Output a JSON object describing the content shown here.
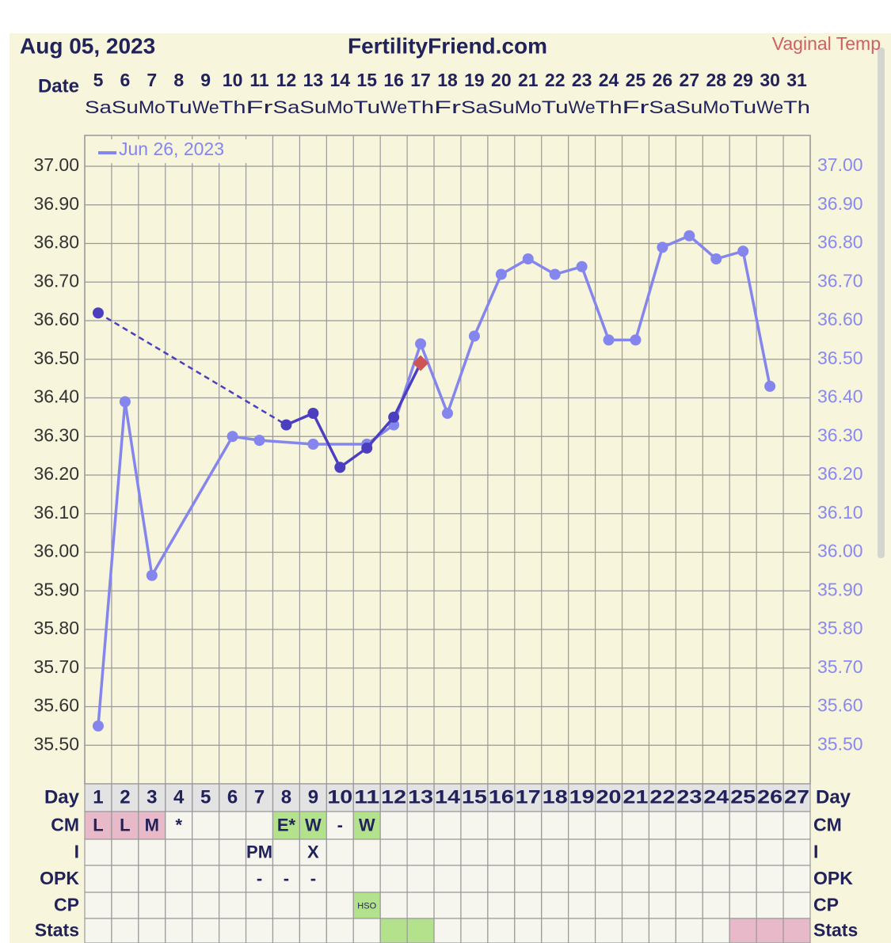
{
  "chart_data": {
    "type": "line",
    "date": "Aug 05, 2023",
    "title": "FertilityFriend.com",
    "temp_label": "Vaginal Temp",
    "date_label": "Date",
    "day_label": "Day",
    "dates": [
      5,
      6,
      7,
      8,
      9,
      10,
      11,
      12,
      13,
      14,
      15,
      16,
      17,
      18,
      19,
      20,
      21,
      22,
      23,
      24,
      25,
      26,
      27,
      28,
      29,
      30,
      31
    ],
    "weekdays": [
      "Sa",
      "Su",
      "Mo",
      "Tu",
      "We",
      "Th",
      "Fr",
      "Sa",
      "Su",
      "Mo",
      "Tu",
      "We",
      "Th",
      "Fr",
      "Sa",
      "Su",
      "Mo",
      "Tu",
      "We",
      "Th",
      "Fr",
      "Sa",
      "Su",
      "Mo",
      "Tu",
      "We",
      "Th"
    ],
    "categories": [
      1,
      2,
      3,
      4,
      5,
      6,
      7,
      8,
      9,
      10,
      11,
      12,
      13,
      14,
      15,
      16,
      17,
      18,
      19,
      20,
      21,
      22,
      23,
      24,
      25,
      26,
      27
    ],
    "ylim": [
      35.4,
      37.08
    ],
    "yticks": [
      {
        "value": 35.5,
        "label": "35.50"
      },
      {
        "value": 35.6,
        "label": "35.60"
      },
      {
        "value": 35.7,
        "label": "35.70"
      },
      {
        "value": 35.8,
        "label": "35.80"
      },
      {
        "value": 35.9,
        "label": "35.90"
      },
      {
        "value": 36.0,
        "label": "36.00"
      },
      {
        "value": 36.1,
        "label": "36.10"
      },
      {
        "value": 36.2,
        "label": "36.20"
      },
      {
        "value": 36.3,
        "label": "36.30"
      },
      {
        "value": 36.4,
        "label": "36.40"
      },
      {
        "value": 36.5,
        "label": "36.50"
      },
      {
        "value": 36.6,
        "label": "36.60"
      },
      {
        "value": 36.7,
        "label": "36.70"
      },
      {
        "value": 36.8,
        "label": "36.80"
      },
      {
        "value": 36.9,
        "label": "36.90"
      },
      {
        "value": 37.0,
        "label": "37.00"
      }
    ],
    "grid": true,
    "series": [
      {
        "name": "Jun 26, 2023",
        "color": "#8585ee",
        "connect_gaps": true,
        "values": [
          35.55,
          36.39,
          35.94,
          null,
          null,
          36.3,
          36.29,
          null,
          36.28,
          null,
          36.28,
          36.33,
          36.54,
          36.36,
          36.56,
          36.72,
          36.76,
          36.72,
          36.74,
          36.55,
          36.55,
          36.79,
          36.82,
          36.76,
          36.78,
          36.43,
          null
        ]
      },
      {
        "color": "#4b3fc0",
        "gap_style": "dashed",
        "last_marker": "diamond",
        "last_marker_color": "#cc5555",
        "values": [
          36.62,
          null,
          null,
          null,
          null,
          null,
          null,
          36.33,
          36.36,
          36.22,
          36.27,
          36.35,
          36.49,
          null,
          null,
          null,
          null,
          null,
          null,
          null,
          null,
          null,
          null,
          null,
          null,
          null,
          null
        ]
      }
    ],
    "table": [
      {
        "label": "CM",
        "cells": [
          "L",
          "L",
          "M",
          "*",
          null,
          null,
          null,
          "E*",
          "W",
          "-",
          "W",
          null,
          null,
          null,
          null,
          null,
          null,
          null,
          null,
          null,
          null,
          null,
          null,
          null,
          null,
          null,
          null
        ],
        "colors": [
          "#e8b9c9",
          "#e8b9c9",
          "#e8b9c9",
          null,
          null,
          null,
          null,
          "#b4e28c",
          "#b4e28c",
          null,
          "#b4e28c",
          null,
          null,
          null,
          null,
          null,
          null,
          null,
          null,
          null,
          null,
          null,
          null,
          null,
          null,
          null,
          null
        ]
      },
      {
        "label": "I",
        "cells": [
          null,
          null,
          null,
          null,
          null,
          null,
          "PM",
          null,
          "X",
          null,
          null,
          null,
          null,
          null,
          null,
          null,
          null,
          null,
          null,
          null,
          null,
          null,
          null,
          null,
          null,
          null,
          null
        ]
      },
      {
        "label": "OPK",
        "cells": [
          null,
          null,
          null,
          null,
          null,
          null,
          "-",
          "-",
          "-",
          null,
          null,
          null,
          null,
          null,
          null,
          null,
          null,
          null,
          null,
          null,
          null,
          null,
          null,
          null,
          null,
          null,
          null
        ]
      },
      {
        "label": "CP",
        "cells": [
          null,
          null,
          null,
          null,
          null,
          null,
          null,
          null,
          null,
          null,
          "HSO",
          null,
          null,
          null,
          null,
          null,
          null,
          null,
          null,
          null,
          null,
          null,
          null,
          null,
          null,
          null,
          null
        ],
        "colors": [
          null,
          null,
          null,
          null,
          null,
          null,
          null,
          null,
          null,
          null,
          "#b4e28c",
          null,
          null,
          null,
          null,
          null,
          null,
          null,
          null,
          null,
          null,
          null,
          null,
          null,
          null,
          null,
          null
        ]
      },
      {
        "label": "Stats",
        "colors": [
          null,
          null,
          null,
          null,
          null,
          null,
          null,
          null,
          null,
          null,
          null,
          "#b4e28c",
          "#b4e28c",
          null,
          null,
          null,
          null,
          null,
          null,
          null,
          null,
          null,
          null,
          null,
          "#e8b9c9",
          "#e8b9c9",
          "#e8b9c9"
        ]
      }
    ]
  }
}
